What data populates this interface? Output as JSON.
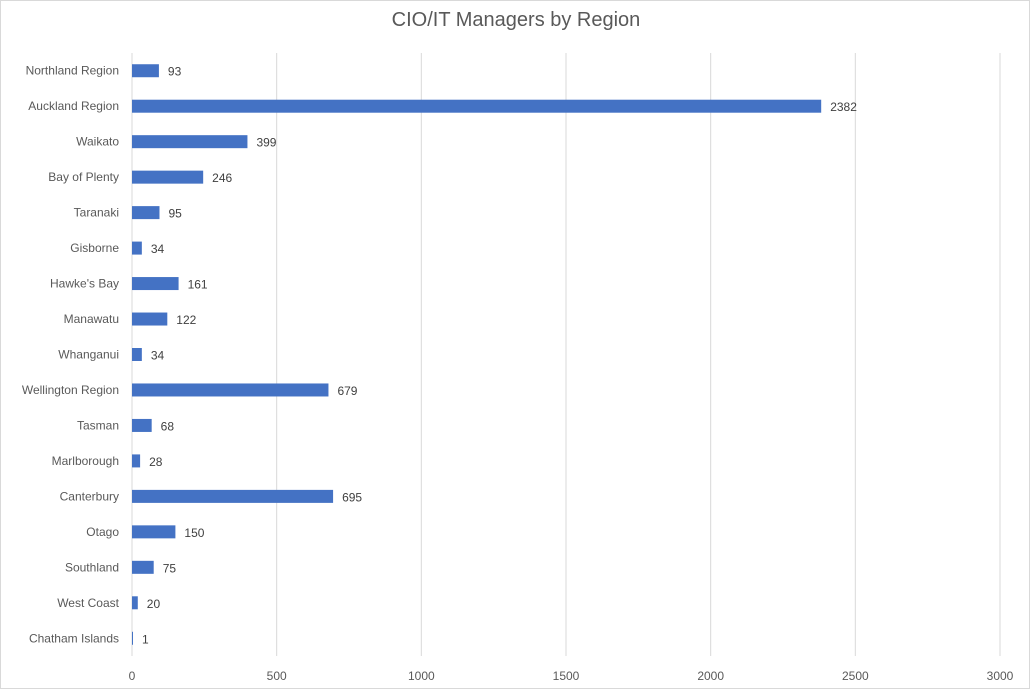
{
  "chart_data": {
    "type": "bar",
    "orientation": "horizontal",
    "title": "CIO/IT Managers by Region",
    "xlabel": "",
    "ylabel": "",
    "xlim": [
      0,
      3000
    ],
    "x_ticks": [
      0,
      500,
      1000,
      1500,
      2000,
      2500,
      3000
    ],
    "grid": true,
    "legend": "none",
    "bar_color": "#4472c4",
    "categories": [
      "Northland Region",
      "Auckland Region",
      "Waikato",
      "Bay of Plenty",
      "Taranaki",
      "Gisborne",
      "Hawke's Bay",
      "Manawatu",
      "Whanganui",
      "Wellington Region",
      "Tasman",
      "Marlborough",
      "Canterbury",
      "Otago",
      "Southland",
      "West Coast",
      "Chatham Islands"
    ],
    "values": [
      93,
      2382,
      399,
      246,
      95,
      34,
      161,
      122,
      34,
      679,
      68,
      28,
      695,
      150,
      75,
      20,
      1
    ]
  }
}
